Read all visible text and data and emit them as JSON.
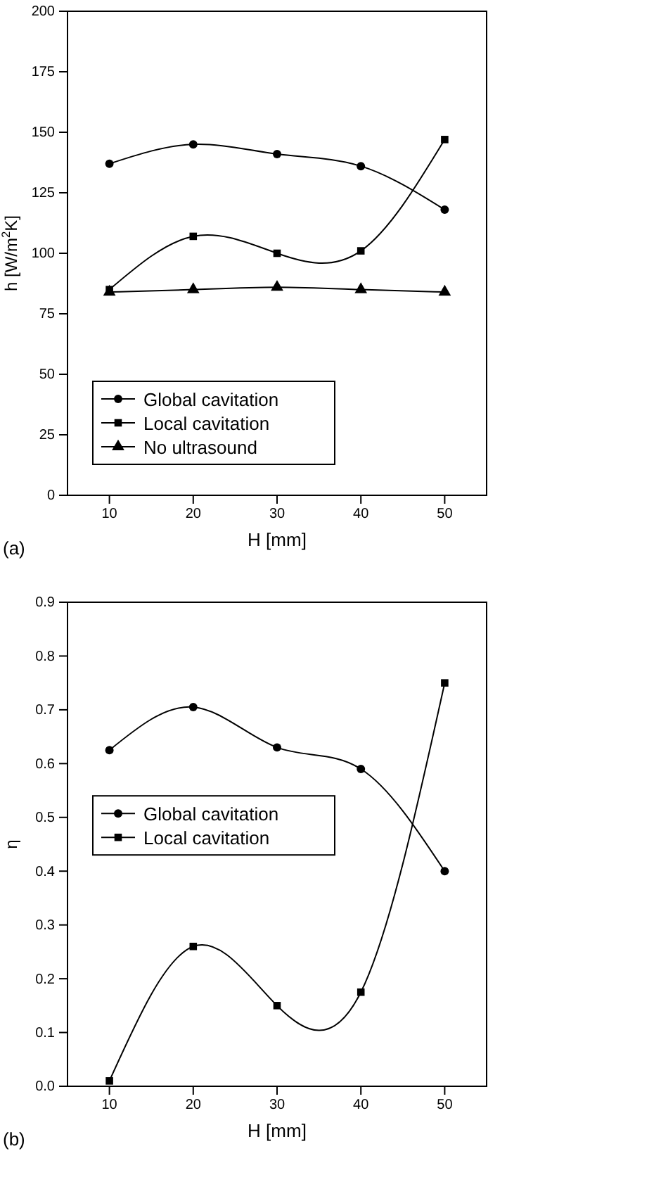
{
  "chart_data": [
    {
      "type": "line",
      "xlabel": "H [mm]",
      "ylabel": "h [W/m$^{2}$K]",
      "x": [
        10,
        20,
        30,
        40,
        50
      ],
      "xlim": [
        5,
        55
      ],
      "xticks": [
        10,
        20,
        30,
        40,
        50
      ],
      "ylim": [
        0,
        200
      ],
      "yticks": [
        0,
        25,
        50,
        75,
        100,
        125,
        150,
        175,
        200
      ],
      "legend": "bottom left",
      "annotations": [
        "(a)"
      ],
      "series": [
        {
          "name": "Global cavitation",
          "color": "#000000",
          "marker": "circle",
          "values": [
            137,
            145,
            141,
            136,
            118
          ]
        },
        {
          "name": "Local cavitation",
          "color": "#000000",
          "marker": "square",
          "values": [
            85,
            107,
            100,
            101,
            147
          ]
        },
        {
          "name": "No ultrasound",
          "color": "#000000",
          "marker": "triangle",
          "values": [
            84,
            85,
            86,
            85,
            84
          ]
        }
      ]
    },
    {
      "type": "line",
      "xlabel": "H [mm]",
      "ylabel": "η",
      "x": [
        10,
        20,
        30,
        40,
        50
      ],
      "xlim": [
        5,
        55
      ],
      "xticks": [
        10,
        20,
        30,
        40,
        50
      ],
      "ylim": [
        0,
        0.9
      ],
      "yticks": [
        {
          "value": 0,
          "label": "0.0"
        },
        0.1,
        0.2,
        0.3,
        0.4,
        0.5,
        0.6,
        0.7,
        0.8,
        0.9
      ],
      "legend": "left",
      "annotations": [
        "(b)"
      ],
      "series": [
        {
          "name": "Global cavitation",
          "color": "#000000",
          "marker": "circle",
          "values": [
            0.625,
            0.705,
            0.63,
            0.59,
            0.4
          ]
        },
        {
          "name": "Local cavitation",
          "color": "#000000",
          "marker": "square",
          "values": [
            0.01,
            0.26,
            0.15,
            0.175,
            0.75
          ]
        }
      ]
    }
  ]
}
